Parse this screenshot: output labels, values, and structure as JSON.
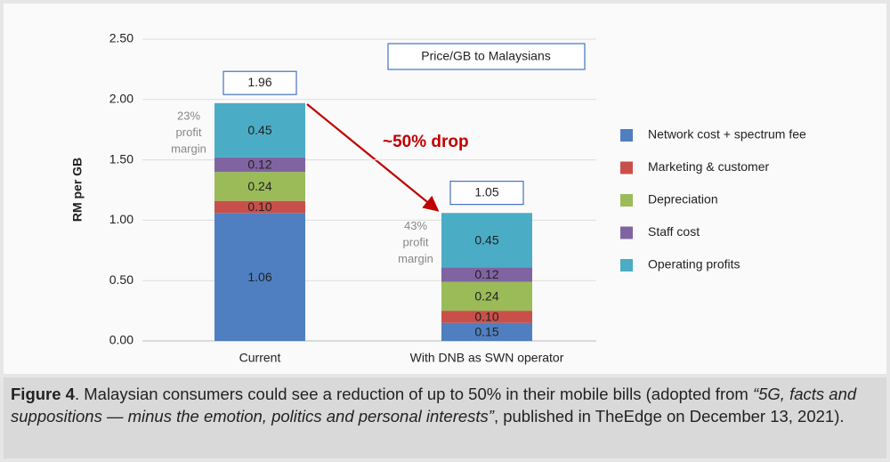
{
  "chart_data": {
    "type": "stacked_bar",
    "y_label": "RM per GB",
    "categories": [
      "Current",
      "With DNB as SWN operator"
    ],
    "series": [
      {
        "name": "Network cost + spectrum fee",
        "color": "#4f7fc0",
        "values": [
          1.06,
          0.15
        ]
      },
      {
        "name": "Marketing & customer",
        "color": "#c9504a",
        "values": [
          0.1,
          0.1
        ],
        "value_labels": [
          "0.10",
          "0.10"
        ]
      },
      {
        "name": "Depreciation",
        "color": "#9bbb59",
        "values": [
          0.24,
          0.24
        ]
      },
      {
        "name": "Staff cost",
        "color": "#8064a2",
        "values": [
          0.12,
          0.12
        ]
      },
      {
        "name": "Operating profits",
        "color": "#4bacc6",
        "values": [
          0.45,
          0.45
        ]
      }
    ],
    "totals": [
      1.96,
      1.05
    ],
    "margin_notes": [
      [
        "23%",
        "profit",
        "margin"
      ],
      [
        "43%",
        "profit",
        "margin"
      ]
    ],
    "arrow_label": "~50% drop",
    "box_label": "Price/GB to Malaysians",
    "ylim": [
      0,
      2.5
    ],
    "yticks": [
      {
        "value": 0,
        "label": "0.00"
      },
      {
        "value": 0.5,
        "label": "0.50"
      },
      {
        "value": 1,
        "label": "1.00"
      },
      {
        "value": 1.5,
        "label": "1.50"
      },
      {
        "value": 2,
        "label": "2.00"
      },
      {
        "value": 2.5,
        "label": "2.50"
      }
    ],
    "grid": true
  },
  "caption": [
    {
      "text": "Figure 4",
      "style": "bold"
    },
    {
      "text": ". Malaysian consumers could see a reduction of up to 50% in their mobile bills (adopted from ",
      "style": "normal"
    },
    {
      "text": "“5G, facts and suppositions — minus the emotion, politics and personal interests”",
      "style": "italic"
    },
    {
      "text": ", published in TheEdge on December 13, 2021).",
      "style": "normal"
    }
  ]
}
